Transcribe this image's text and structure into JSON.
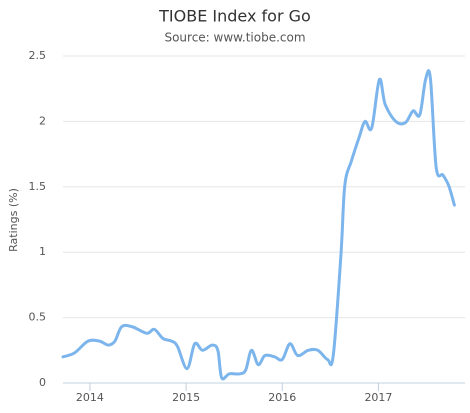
{
  "chart_data": {
    "type": "line",
    "title": "TIOBE Index for Go",
    "subtitle": "Source: www.tiobe.com",
    "y_label": "Ratings (%)",
    "x": [
      2013.72,
      2013.84,
      2013.98,
      2014.1,
      2014.19,
      2014.26,
      2014.33,
      2014.44,
      2014.59,
      2014.67,
      2014.76,
      2014.85,
      2014.91,
      2015.01,
      2015.09,
      2015.17,
      2015.27,
      2015.33,
      2015.37,
      2015.45,
      2015.56,
      2015.62,
      2015.68,
      2015.75,
      2015.82,
      2015.92,
      2016.0,
      2016.08,
      2016.16,
      2016.27,
      2016.37,
      2016.47,
      2016.53,
      2016.61,
      2016.65,
      2016.72,
      2016.8,
      2016.86,
      2016.93,
      2017.01,
      2017.07,
      2017.18,
      2017.28,
      2017.36,
      2017.43,
      2017.49,
      2017.54,
      2017.6,
      2017.67,
      2017.73,
      2017.79
    ],
    "series": [
      {
        "name": "Go",
        "color": "#7cb5ec",
        "values": [
          0.2,
          0.23,
          0.32,
          0.32,
          0.29,
          0.32,
          0.43,
          0.43,
          0.38,
          0.41,
          0.34,
          0.32,
          0.28,
          0.11,
          0.3,
          0.25,
          0.29,
          0.25,
          0.04,
          0.07,
          0.07,
          0.1,
          0.25,
          0.14,
          0.21,
          0.2,
          0.18,
          0.3,
          0.21,
          0.25,
          0.25,
          0.18,
          0.21,
          0.98,
          1.51,
          1.7,
          1.88,
          2.0,
          1.95,
          2.32,
          2.13,
          2.0,
          1.99,
          2.08,
          2.05,
          2.32,
          2.33,
          1.65,
          1.59,
          1.51,
          1.36
        ]
      }
    ],
    "xlim": [
      2013.72,
      2017.9
    ],
    "xticks": [
      2014,
      2015,
      2016,
      2017
    ],
    "ylim": [
      0,
      2.5
    ],
    "yticks": [
      0,
      0.5,
      1,
      1.5,
      2,
      2.5
    ],
    "grid": true
  }
}
